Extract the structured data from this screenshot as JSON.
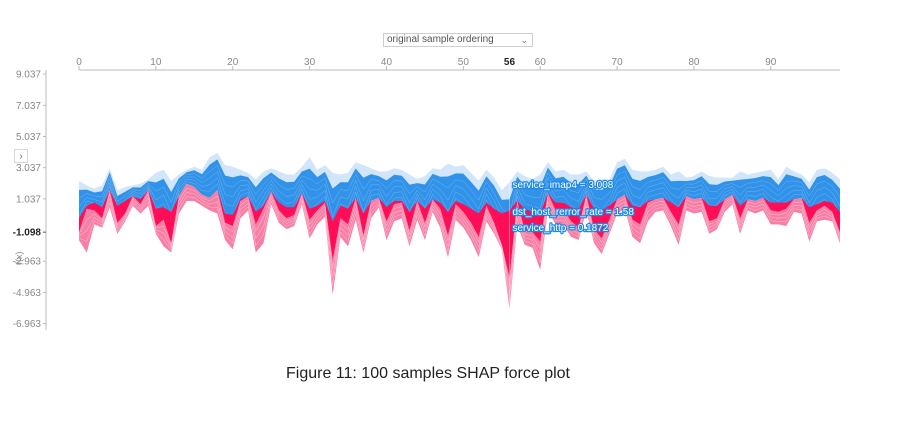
{
  "controls": {
    "ordering_label": "original sample ordering",
    "toggle_label": "›"
  },
  "caption": "Figure 11: 100 samples SHAP force plot",
  "colors": {
    "positive": "#ff0d57",
    "positive_light": "#ffc3d5",
    "negative": "#1e88e5",
    "negative_light": "#d1e6fa",
    "axis": "#bbbbbb",
    "tick_text": "#888888"
  },
  "chart_data": {
    "type": "area",
    "ylabel": "f(x)",
    "xlim": [
      0,
      99
    ],
    "ylim": [
      -7.5,
      9.3
    ],
    "x_ticks": [
      0,
      10,
      20,
      30,
      40,
      50,
      60,
      70,
      80,
      90
    ],
    "x_tick_labels": [
      "0",
      "10",
      "20",
      "30",
      "40",
      "50",
      "60",
      "70",
      "80",
      "90"
    ],
    "y_ticks": [
      9.037,
      7.037,
      5.037,
      3.037,
      1.037,
      -2.963,
      -4.963,
      -6.963
    ],
    "y_tick_labels": [
      "9.037",
      "7.037",
      "5.037",
      "3.037",
      "1.037",
      "-2.963",
      "-4.963",
      "-6.963"
    ],
    "base_value": -1.098,
    "base_value_label": "-1.098",
    "hover_index": 56,
    "hover_label": "56",
    "hover_features": [
      {
        "label": "service_imap4 = 3.008"
      },
      {
        "label": "dst_host_rerror_rate = 1.58"
      },
      {
        "label": "service_http = 0.1872"
      }
    ],
    "envelope": {
      "top": [
        2.2,
        1.9,
        1.7,
        1.9,
        3.0,
        1.6,
        1.8,
        1.9,
        2.0,
        2.3,
        2.7,
        2.9,
        2.2,
        2.6,
        2.9,
        3.1,
        2.9,
        3.7,
        4.0,
        3.2,
        3.1,
        2.9,
        2.7,
        2.3,
        2.8,
        3.0,
        2.8,
        2.6,
        2.6,
        3.1,
        3.7,
        2.9,
        3.2,
        2.7,
        2.6,
        2.7,
        3.4,
        3.2,
        3.0,
        2.8,
        2.8,
        3.0,
        2.9,
        2.6,
        2.3,
        2.5,
        3.0,
        2.9,
        3.3,
        3.1,
        3.2,
        2.7,
        2.2,
        2.9,
        2.4,
        1.6,
        2.1,
        2.8,
        2.5,
        2.3,
        2.6,
        3.4,
        2.8,
        2.9,
        2.6,
        2.6,
        2.8,
        2.2,
        2.3,
        2.3,
        3.4,
        3.6,
        2.9,
        2.8,
        2.8,
        2.9,
        3.1,
        2.6,
        2.8,
        2.4,
        2.5,
        2.8,
        2.5,
        2.4,
        2.4,
        2.4,
        2.8,
        2.6,
        2.7,
        2.8,
        2.9,
        2.3,
        3.1,
        2.8,
        2.6,
        2.1,
        2.9,
        3.0,
        2.7,
        2.3
      ],
      "split": [
        -1.1,
        0.4,
        0.3,
        -0.2,
        1.6,
        -0.5,
        0.1,
        1.2,
        0.7,
        1.6,
        -0.7,
        -0.3,
        -1.8,
        1.2,
        2.0,
        1.8,
        1.3,
        1.1,
        1.6,
        -0.5,
        -0.7,
        0.9,
        1.2,
        -0.6,
        0.4,
        1.5,
        0.3,
        -0.2,
        0.0,
        1.4,
        -0.3,
        0.3,
        0.8,
        -2.9,
        -0.2,
        -0.6,
        1.1,
        -1.3,
        0.9,
        1.1,
        -0.4,
        0.7,
        0.8,
        -1.0,
        0.9,
        -0.5,
        1.0,
        0.4,
        -1.3,
        0.7,
        0.2,
        -0.5,
        -1.4,
        0.6,
        -0.5,
        -1.9,
        -4.0,
        0.9,
        -1.0,
        -1.1,
        -1.7,
        1.4,
        0.3,
        0.4,
        -0.4,
        -0.8,
        1.3,
        -0.9,
        -1.5,
        -0.3,
        1.0,
        1.3,
        -0.3,
        -0.6,
        0.8,
        1.0,
        1.1,
        0.2,
        -0.6,
        1.2,
        1.0,
        1.1,
        -0.4,
        -0.2,
        1.0,
        1.3,
        -0.2,
        1.0,
        0.9,
        1.1,
        0.3,
        0.2,
        0.4,
        1.0,
        1.1,
        -0.5,
        0.3,
        0.6,
        0.2,
        -1.1
      ],
      "bottom": [
        -1.6,
        -2.4,
        -0.6,
        -0.8,
        0.5,
        -1.2,
        -0.4,
        0.6,
        0.1,
        0.6,
        -1.2,
        -2.0,
        -2.4,
        0.1,
        0.9,
        0.9,
        0.6,
        0.3,
        0.1,
        -1.6,
        -2.2,
        -0.2,
        0.3,
        -2.4,
        -1.8,
        0.7,
        -0.5,
        -0.9,
        -0.7,
        0.7,
        -1.5,
        -0.6,
        -0.1,
        -5.1,
        -1.4,
        -2.0,
        -0.3,
        -2.4,
        -0.2,
        0.5,
        -1.6,
        -0.4,
        -0.2,
        -2.0,
        -0.3,
        -1.6,
        0.2,
        -0.8,
        -2.7,
        -0.3,
        -0.8,
        -1.6,
        -2.7,
        -0.4,
        -1.2,
        -2.2,
        -6.0,
        -0.6,
        -1.9,
        -2.1,
        -3.5,
        0.3,
        -0.6,
        -0.6,
        -1.4,
        -1.6,
        0.3,
        -1.8,
        -2.5,
        -1.2,
        0.1,
        0.4,
        -1.4,
        -1.8,
        -0.4,
        0.2,
        0.3,
        -0.7,
        -1.9,
        0.3,
        0.1,
        0.2,
        -1.2,
        -0.9,
        0.2,
        0.7,
        -1.2,
        0.3,
        0.1,
        0.3,
        -0.6,
        -0.6,
        -0.7,
        0.2,
        0.1,
        -1.7,
        -0.4,
        -0.3,
        -0.4,
        -1.8
      ],
      "pos_core": [
        -0.2,
        0.6,
        0.8,
        0.5,
        1.1,
        0.6,
        0.9,
        1.0,
        1.0,
        1.2,
        0.4,
        0.5,
        0.2,
        1.0,
        1.3,
        1.3,
        1.1,
        1.0,
        1.1,
        0.1,
        0.0,
        1.0,
        1.1,
        0.2,
        0.6,
        1.1,
        0.8,
        0.5,
        0.5,
        1.1,
        0.4,
        0.6,
        0.9,
        -0.4,
        0.6,
        0.4,
        1.0,
        0.1,
        0.9,
        1.0,
        0.5,
        0.9,
        0.9,
        0.2,
        0.9,
        0.4,
        1.0,
        0.8,
        0.2,
        0.9,
        0.7,
        0.4,
        0.1,
        0.8,
        0.4,
        0.1,
        0.3,
        0.9,
        0.4,
        0.2,
        0.1,
        1.1,
        0.8,
        0.8,
        0.5,
        0.4,
        1.1,
        0.4,
        0.3,
        0.6,
        1.0,
        1.1,
        0.6,
        0.5,
        0.9,
        1.0,
        1.0,
        0.8,
        0.5,
        1.0,
        1.0,
        1.0,
        0.6,
        0.6,
        1.0,
        1.1,
        0.6,
        1.0,
        0.9,
        1.0,
        0.8,
        0.8,
        0.8,
        1.0,
        1.0,
        0.5,
        0.7,
        0.9,
        0.8,
        0.2
      ]
    }
  }
}
